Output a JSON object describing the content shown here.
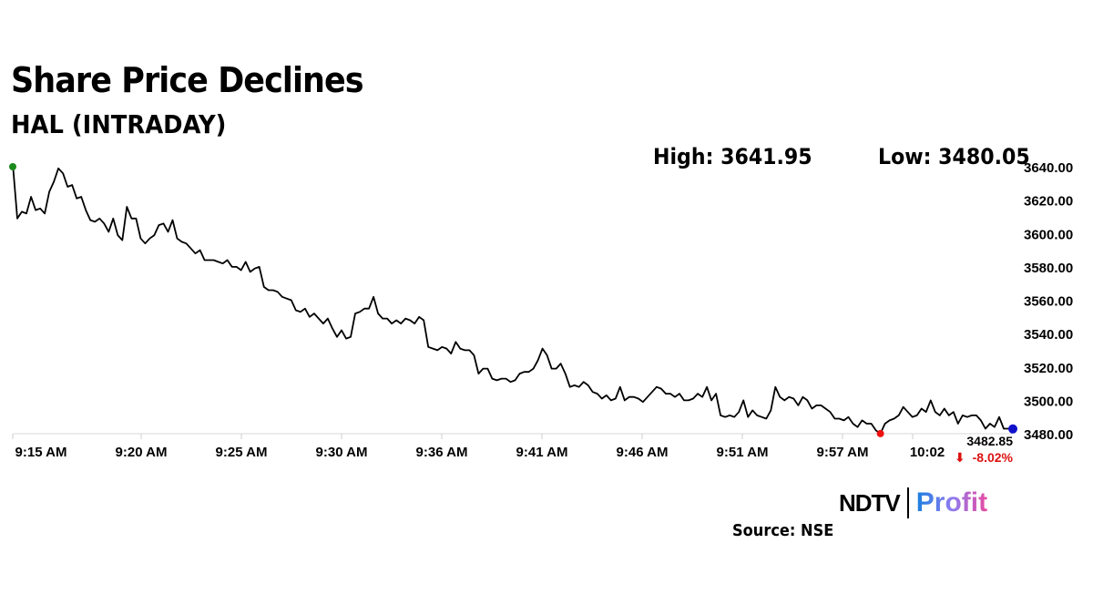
{
  "header": {
    "title": "Share Price Declines",
    "subtitle": "HAL (INTRADAY)",
    "high_text": "High: 3641.95",
    "low_text": "Low: 3480.05"
  },
  "footer": {
    "source": "Source: NSE",
    "logo_ndtv": "NDTV",
    "logo_profit": "Profit"
  },
  "colors": {
    "line": "#000000",
    "start_dot": "#1a8a1a",
    "low_dot": "#ee1111",
    "end_dot": "#1111cc",
    "change": "#dd1111"
  },
  "chart_data": {
    "type": "line",
    "title": "Share Price Declines",
    "subtitle": "HAL (INTRADAY)",
    "xlabel": "",
    "ylabel": "",
    "ylim": [
      3480,
      3640
    ],
    "y_ticks": [
      "3480.00",
      "3500.00",
      "3520.00",
      "3540.00",
      "3560.00",
      "3580.00",
      "3600.00",
      "3620.00",
      "3640.00"
    ],
    "x_ticks": [
      "9:15 AM",
      "9:20 AM",
      "9:25 AM",
      "9:30 AM",
      "9:36 AM",
      "9:41 AM",
      "9:46 AM",
      "9:51 AM",
      "9:57 AM",
      "10:02"
    ],
    "high": 3641.95,
    "low": 3480.05,
    "last_value": "3482.85",
    "change": "-8.02%",
    "change_arrow": "⬇",
    "values": [
      3641.95,
      3609,
      3613,
      3612,
      3622,
      3614,
      3615,
      3612,
      3625,
      3631,
      3639,
      3636,
      3628,
      3629,
      3621,
      3622,
      3614,
      3608,
      3607,
      3609,
      3606,
      3601,
      3609,
      3599,
      3596,
      3616,
      3609,
      3609,
      3597,
      3594,
      3597,
      3599,
      3605,
      3606,
      3601,
      3608,
      3597,
      3595,
      3594,
      3591,
      3588,
      3590,
      3584,
      3584,
      3584,
      3583,
      3582,
      3584,
      3580,
      3580,
      3578,
      3583,
      3577,
      3579,
      3580,
      3568,
      3566,
      3566,
      3565,
      3562,
      3561,
      3560,
      3554,
      3553,
      3555,
      3550,
      3552,
      3549,
      3546,
      3549,
      3543,
      3538,
      3542,
      3537,
      3538,
      3552,
      3553,
      3555,
      3555,
      3562,
      3552,
      3549,
      3549,
      3546,
      3548,
      3546,
      3549,
      3548,
      3546,
      3550,
      3548,
      3532,
      3531,
      3530,
      3532,
      3531,
      3528,
      3535,
      3531,
      3530,
      3530,
      3527,
      3516,
      3519,
      3519,
      3513,
      3512,
      3513,
      3513,
      3511,
      3512,
      3516,
      3517,
      3517,
      3519,
      3524,
      3531,
      3527,
      3519,
      3519,
      3522,
      3516,
      3508,
      3509,
      3508,
      3511,
      3509,
      3505,
      3504,
      3501,
      3503,
      3500,
      3501,
      3508,
      3500,
      3502,
      3502,
      3501,
      3499,
      3502,
      3505,
      3508,
      3507,
      3504,
      3504,
      3502,
      3504,
      3500,
      3500,
      3501,
      3504,
      3502,
      3508,
      3500,
      3504,
      3491,
      3490,
      3491,
      3490,
      3493,
      3500,
      3490,
      3494,
      3491,
      3490,
      3489,
      3494,
      3508,
      3502,
      3500,
      3502,
      3501,
      3497,
      3502,
      3500,
      3495,
      3497,
      3497,
      3495,
      3493,
      3489,
      3489,
      3488,
      3490,
      3486,
      3484,
      3488,
      3486,
      3486,
      3482,
      3480.05,
      3486,
      3488,
      3489,
      3491,
      3496,
      3493,
      3490,
      3491,
      3495,
      3493,
      3500,
      3493,
      3491,
      3495,
      3491,
      3493,
      3486,
      3491,
      3490,
      3491,
      3491,
      3488,
      3483,
      3486,
      3484,
      3490,
      3483,
      3483,
      3482.85
    ]
  }
}
